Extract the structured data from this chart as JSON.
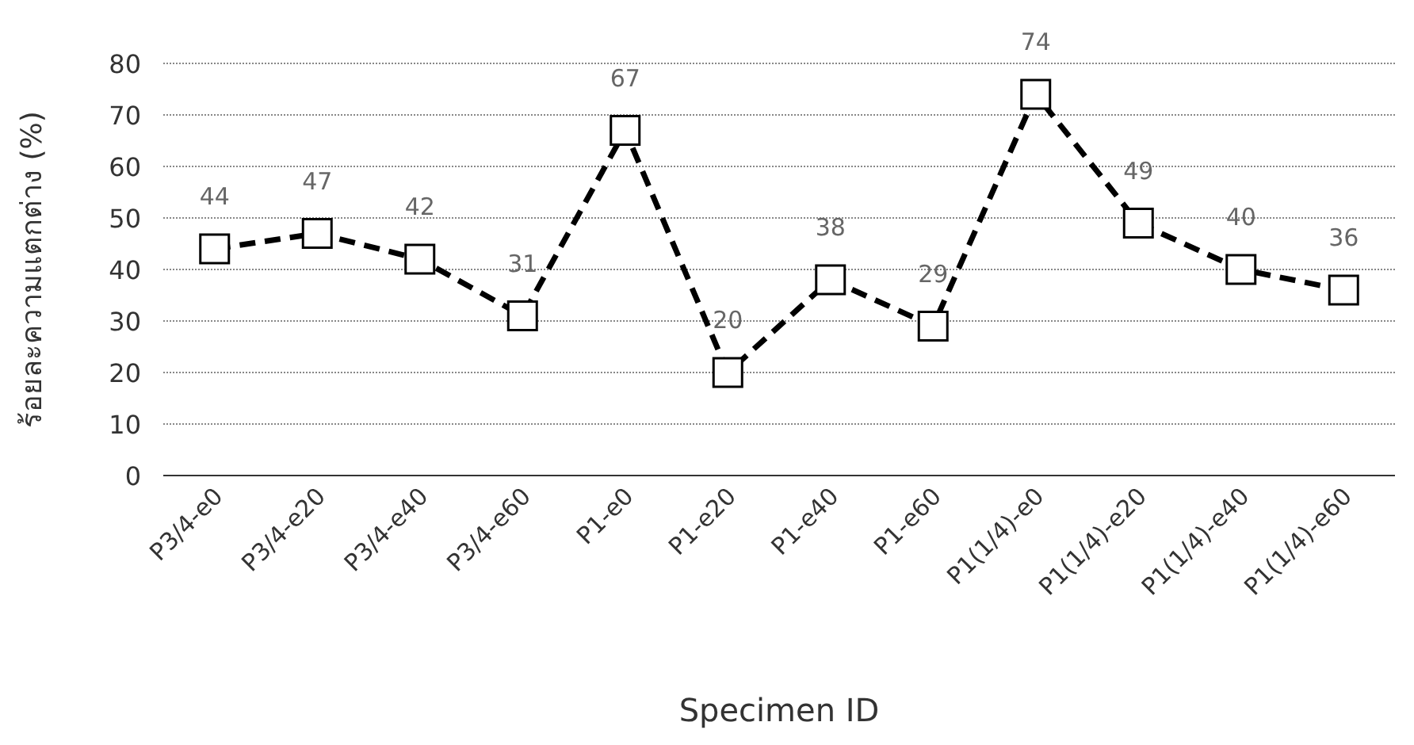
{
  "chart_data": {
    "type": "line",
    "xlabel": "Specimen ID",
    "ylabel": "ร้อยละความแตกต่าง (%)",
    "categories": [
      "P3/4-e0",
      "P3/4-e20",
      "P3/4-e40",
      "P3/4-e60",
      "P1-e0",
      "P1-e20",
      "P1-e40",
      "P1-e60",
      "P1(1/4)-e0",
      "P1(1/4)-e20",
      "P1(1/4)-e40",
      "P1(1/4)-e60"
    ],
    "series": [
      {
        "color": "#000000",
        "values": [
          44,
          47,
          42,
          31,
          67,
          20,
          38,
          29,
          74,
          49,
          40,
          36
        ]
      }
    ],
    "ylim": [
      0,
      80
    ],
    "yticks": [
      0,
      10,
      20,
      30,
      40,
      50,
      60,
      70,
      80
    ],
    "grid": "y",
    "marker": "square",
    "line_style": "dashed",
    "data_labels": true
  }
}
